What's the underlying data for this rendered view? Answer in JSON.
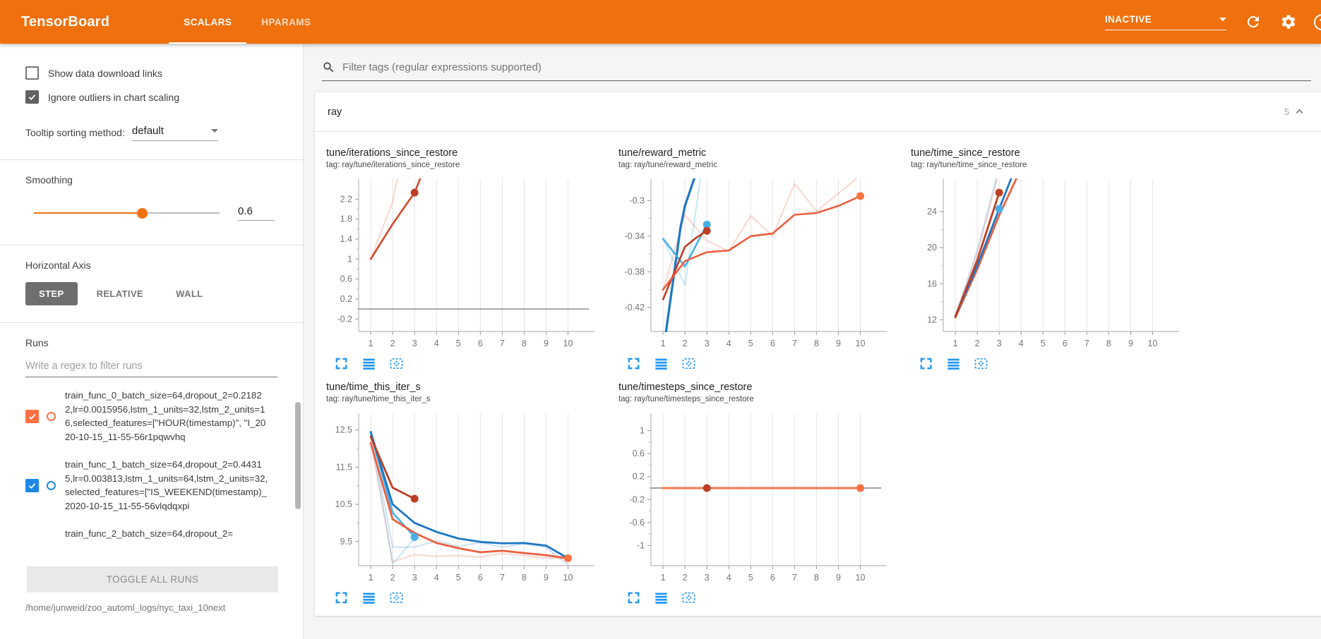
{
  "header": {
    "title": "TensorBoard",
    "tabs": [
      {
        "label": "SCALARS",
        "active": true
      },
      {
        "label": "HPARAMS",
        "active": false
      }
    ],
    "status": "INACTIVE",
    "colors": {
      "header_bg": "#f0700d"
    }
  },
  "sidebar": {
    "show_download": {
      "label": "Show data download links",
      "checked": false
    },
    "ignore_outliers": {
      "label": "Ignore outliers in chart scaling",
      "checked": true
    },
    "tooltip_sorting": {
      "label": "Tooltip sorting method:",
      "value": "default"
    },
    "smoothing": {
      "label": "Smoothing",
      "value": "0.6",
      "percent": 58
    },
    "horizontal_axis": {
      "label": "Horizontal Axis",
      "options": [
        "STEP",
        "RELATIVE",
        "WALL"
      ],
      "active": "STEP"
    },
    "runs": {
      "label": "Runs",
      "filter_placeholder": "Write a regex to filter runs",
      "items": [
        {
          "name": "train_func_0_batch_size=64,dropout_2=0.21822,lr=0.0015956,lstm_1_units=32,lstm_2_units=16,selected_features=[\"HOUR(timestamp)\", \"I_2020-10-15_11-55-56r1pqwvhq",
          "color": "#ff7043",
          "checked": true,
          "partial": false
        },
        {
          "name": "train_func_1_batch_size=64,dropout_2=0.44315,lr=0.003813,lstm_1_units=64,lstm_2_units=32,selected_features=[\"IS_WEEKEND(timestamp)_2020-10-15_11-55-56vlqdqxpi",
          "color": "#1e88e5",
          "checked": true,
          "partial": false
        },
        {
          "name": "train_func_2_batch_size=64,dropout_2=",
          "color": "#757575",
          "checked": true,
          "partial": true
        }
      ],
      "toggle_all": "TOGGLE ALL RUNS",
      "log_dir": "/home/junweid/zoo_automl_logs/nyc_taxi_10next"
    }
  },
  "main": {
    "filter_placeholder": "Filter tags (regular expressions supported)",
    "section": {
      "name": "ray",
      "count": "5"
    }
  },
  "chart_data": [
    {
      "type": "line",
      "title": "tune/iterations_since_restore",
      "tag": "tag: ray/tune/iterations_since_restore",
      "xticks": [
        1,
        2,
        3,
        4,
        5,
        6,
        7,
        8,
        9,
        10
      ],
      "xlim": [
        0.45,
        10.95
      ],
      "yticks": [
        -0.2,
        0.2,
        0.6,
        1,
        1.4,
        1.8,
        2.2
      ],
      "ylim": [
        -0.45,
        2.6
      ],
      "zero_line": true,
      "series": [
        {
          "color": "#ec5f3e",
          "opacity": 0.25,
          "width": 2,
          "points": [
            [
              1,
              1
            ],
            [
              2,
              2.15
            ],
            [
              2.45,
              3.1
            ]
          ]
        },
        {
          "color": "#d14a2e",
          "opacity": 1,
          "width": 2.6,
          "points": [
            [
              1,
              1
            ],
            [
              2,
              1.7
            ],
            [
              3,
              2.33
            ],
            [
              3.7,
              3.1
            ]
          ],
          "dots": [
            {
              "x": 3,
              "y": 2.33,
              "color": "#bd3f26"
            }
          ]
        }
      ]
    },
    {
      "type": "line",
      "title": "tune/reward_metric",
      "tag": "tag: ray/tune/reward_metric",
      "xticks": [
        1,
        2,
        3,
        4,
        5,
        6,
        7,
        8,
        9,
        10
      ],
      "xlim": [
        0.45,
        10.95
      ],
      "yticks": [
        -0.42,
        -0.38,
        -0.34,
        -0.3
      ],
      "ylim": [
        -0.447,
        -0.276
      ],
      "zero_line": false,
      "series": [
        {
          "color": "#ec5f3e",
          "opacity": 0.25,
          "width": 2,
          "points": [
            [
              1,
              -0.401
            ],
            [
              2,
              -0.316
            ],
            [
              3,
              -0.345
            ],
            [
              4,
              -0.357
            ],
            [
              5,
              -0.317
            ],
            [
              6,
              -0.34
            ],
            [
              7,
              -0.281
            ],
            [
              8,
              -0.312
            ],
            [
              9,
              -0.292
            ],
            [
              10,
              -0.272
            ]
          ]
        },
        {
          "color": "#47afe8",
          "opacity": 0.3,
          "width": 2,
          "points": [
            [
              1,
              -0.343
            ],
            [
              2,
              -0.395
            ],
            [
              2.75,
              -0.268
            ]
          ]
        },
        {
          "color": "#1d76c4",
          "opacity": 1,
          "width": 3.2,
          "points": [
            [
              1.12,
              -0.45
            ],
            [
              1.8,
              -0.33
            ],
            [
              2,
              -0.306
            ],
            [
              2.5,
              -0.27
            ]
          ]
        },
        {
          "color": "#47afe8",
          "opacity": 1,
          "width": 2.6,
          "points": [
            [
              1,
              -0.343
            ],
            [
              2,
              -0.374
            ],
            [
              3,
              -0.327
            ]
          ],
          "dots": [
            {
              "x": 3,
              "y": -0.327,
              "color": "#47afe8"
            }
          ]
        },
        {
          "color": "#bd3f26",
          "opacity": 1,
          "width": 2.6,
          "points": [
            [
              1,
              -0.411
            ],
            [
              2,
              -0.352
            ],
            [
              2.5,
              -0.342
            ],
            [
              3,
              -0.334
            ]
          ],
          "dots": [
            {
              "x": 3,
              "y": -0.334,
              "color": "#bd3f26"
            }
          ]
        },
        {
          "color": "#ec5f3e",
          "opacity": 1,
          "width": 2.6,
          "points": [
            [
              1,
              -0.4
            ],
            [
              2,
              -0.368
            ],
            [
              3,
              -0.358
            ],
            [
              4,
              -0.356
            ],
            [
              5,
              -0.34
            ],
            [
              6,
              -0.337
            ],
            [
              7,
              -0.316
            ],
            [
              8,
              -0.314
            ],
            [
              9,
              -0.306
            ],
            [
              10,
              -0.295
            ]
          ],
          "dots": [
            {
              "x": 10,
              "y": -0.295,
              "color": "#ff7043"
            }
          ]
        }
      ]
    },
    {
      "type": "line",
      "title": "tune/time_since_restore",
      "tag": "tag: ray/tune/time_since_restore",
      "xticks": [
        1,
        2,
        3,
        4,
        5,
        6,
        7,
        8,
        9,
        10
      ],
      "xlim": [
        0.45,
        10.95
      ],
      "yticks": [
        12,
        16,
        20,
        24
      ],
      "ylim": [
        10.7,
        27.6
      ],
      "zero_line": false,
      "series": [
        {
          "color": "#ec5f3e",
          "opacity": 0.25,
          "width": 2,
          "points": [
            [
              1,
              12.3
            ],
            [
              2,
              19.3
            ],
            [
              2.95,
              28
            ]
          ]
        },
        {
          "color": "#1d76c4",
          "opacity": 0.22,
          "width": 2,
          "points": [
            [
              1,
              12.45
            ],
            [
              2,
              19.7
            ],
            [
              2.9,
              28
            ]
          ]
        },
        {
          "color": "#ec5f3e",
          "opacity": 1,
          "width": 2.8,
          "points": [
            [
              1,
              12.25
            ],
            [
              2,
              17.6
            ],
            [
              3,
              23.6
            ],
            [
              3.85,
              28
            ]
          ]
        },
        {
          "color": "#1d76c4",
          "opacity": 1,
          "width": 2.8,
          "points": [
            [
              1,
              12.4
            ],
            [
              2,
              18
            ],
            [
              3,
              24.3
            ],
            [
              3.6,
              28
            ]
          ],
          "dots": [
            {
              "x": 3,
              "y": 24.3,
              "color": "#47afe8"
            }
          ]
        },
        {
          "color": "#bd3f26",
          "opacity": 1,
          "width": 2.8,
          "points": [
            [
              1,
              12.35
            ],
            [
              2,
              18.6
            ],
            [
              3,
              26.1
            ]
          ],
          "dots": [
            {
              "x": 3,
              "y": 26.1,
              "color": "#bd3f26"
            }
          ]
        }
      ]
    },
    {
      "type": "line",
      "title": "tune/time_this_iter_s",
      "tag": "tag: ray/tune/time_this_iter_s",
      "xticks": [
        1,
        2,
        3,
        4,
        5,
        6,
        7,
        8,
        9,
        10
      ],
      "xlim": [
        0.45,
        10.95
      ],
      "yticks": [
        9.5,
        10.5,
        11.5,
        12.5
      ],
      "ylim": [
        8.85,
        12.95
      ],
      "zero_line": false,
      "series": [
        {
          "color": "#ec5f3e",
          "opacity": 0.25,
          "width": 2,
          "points": [
            [
              1,
              12.2
            ],
            [
              2,
              8.95
            ],
            [
              3,
              9.15
            ],
            [
              4,
              9.1
            ],
            [
              5,
              9.12
            ],
            [
              6,
              9.08
            ],
            [
              7,
              9.18
            ],
            [
              8,
              9.12
            ],
            [
              9,
              9.06
            ],
            [
              10,
              9.03
            ]
          ]
        },
        {
          "color": "#1d76c4",
          "opacity": 0.22,
          "width": 2,
          "points": [
            [
              1,
              12.45
            ],
            [
              2,
              9.35
            ],
            [
              3,
              9.35
            ],
            [
              4,
              9.52
            ],
            [
              5,
              9.37
            ],
            [
              6,
              9.47
            ],
            [
              7,
              9.35
            ],
            [
              8,
              9.44
            ],
            [
              9,
              9.34
            ],
            [
              10,
              8.88
            ]
          ]
        },
        {
          "color": "#47afe8",
          "opacity": 0.3,
          "width": 2,
          "points": [
            [
              1,
              12.4
            ],
            [
              2,
              8.9
            ],
            [
              3,
              9.58
            ]
          ]
        },
        {
          "color": "#47afe8",
          "opacity": 1,
          "width": 2.6,
          "points": [
            [
              1,
              12.42
            ],
            [
              2,
              10.28
            ],
            [
              3,
              9.62
            ]
          ],
          "dots": [
            {
              "x": 3,
              "y": 9.62,
              "color": "#47afe8"
            }
          ]
        },
        {
          "color": "#1d76c4",
          "opacity": 1,
          "width": 2.8,
          "points": [
            [
              1,
              12.45
            ],
            [
              2,
              10.5
            ],
            [
              3,
              10
            ],
            [
              4,
              9.76
            ],
            [
              5,
              9.58
            ],
            [
              6,
              9.49
            ],
            [
              7,
              9.45
            ],
            [
              8,
              9.46
            ],
            [
              9,
              9.39
            ],
            [
              10,
              9.05
            ]
          ]
        },
        {
          "color": "#ec5f3e",
          "opacity": 1,
          "width": 2.8,
          "points": [
            [
              1,
              12.15
            ],
            [
              2,
              10.1
            ],
            [
              3,
              9.73
            ],
            [
              4,
              9.46
            ],
            [
              5,
              9.32
            ],
            [
              6,
              9.21
            ],
            [
              7,
              9.25
            ],
            [
              8,
              9.19
            ],
            [
              9,
              9.13
            ],
            [
              10,
              9.05
            ]
          ],
          "dots": [
            {
              "x": 10,
              "y": 9.05,
              "color": "#ff7043"
            }
          ]
        },
        {
          "color": "#bd3f26",
          "opacity": 1,
          "width": 2.8,
          "points": [
            [
              1,
              12.32
            ],
            [
              2,
              10.95
            ],
            [
              3,
              10.65
            ]
          ],
          "dots": [
            {
              "x": 3,
              "y": 10.65,
              "color": "#bd3f26"
            }
          ]
        }
      ]
    },
    {
      "type": "line",
      "title": "tune/timesteps_since_restore",
      "tag": "tag: ray/tune/timesteps_since_restore",
      "xticks": [
        1,
        2,
        3,
        4,
        5,
        6,
        7,
        8,
        9,
        10
      ],
      "xlim": [
        0.45,
        10.95
      ],
      "yticks": [
        -1,
        -0.6,
        -0.2,
        0.2,
        0.6,
        1
      ],
      "ylim": [
        -1.35,
        1.3
      ],
      "zero_line": true,
      "series": [
        {
          "color": "#f4764f",
          "opacity": 1,
          "width": 3,
          "points": [
            [
              1,
              0
            ],
            [
              10,
              0
            ]
          ],
          "dots": [
            {
              "x": 3,
              "y": 0,
              "color": "#bd3f26"
            },
            {
              "x": 10,
              "y": 0,
              "color": "#ff7043"
            }
          ]
        }
      ]
    }
  ]
}
